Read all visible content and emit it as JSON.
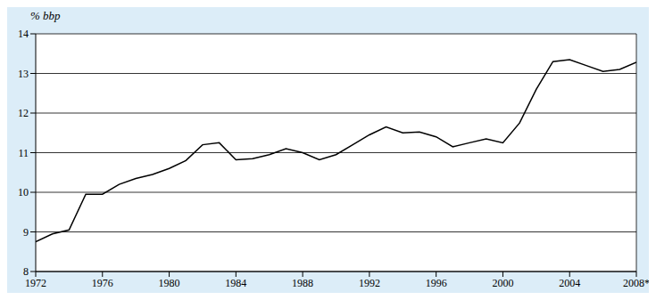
{
  "chart_data": {
    "type": "line",
    "y_label": "% bbp",
    "x": [
      1972,
      1973,
      1974,
      1975,
      1976,
      1977,
      1978,
      1979,
      1980,
      1981,
      1982,
      1983,
      1984,
      1985,
      1986,
      1987,
      1988,
      1989,
      1990,
      1991,
      1992,
      1993,
      1994,
      1995,
      1996,
      1997,
      1998,
      1999,
      2000,
      2001,
      2002,
      2003,
      2004,
      2005,
      2006,
      2007,
      2008
    ],
    "values": [
      8.75,
      8.95,
      9.05,
      9.95,
      9.95,
      10.2,
      10.35,
      10.45,
      10.6,
      10.8,
      11.2,
      11.25,
      10.82,
      10.85,
      10.95,
      11.1,
      11.0,
      10.82,
      10.95,
      11.2,
      11.45,
      11.65,
      11.5,
      11.52,
      11.4,
      11.15,
      11.25,
      11.35,
      11.25,
      11.75,
      12.6,
      13.3,
      13.35,
      13.2,
      13.05,
      13.1,
      13.28
    ],
    "color": "#000000",
    "xlim": [
      1972,
      2008
    ],
    "xticks": [
      1972,
      1976,
      1980,
      1984,
      1988,
      1992,
      1996,
      2000,
      2004,
      {
        "value": 2008,
        "label": "2008*"
      }
    ],
    "ylim": [
      8,
      14
    ],
    "yticks": [
      8,
      9,
      10,
      11,
      12,
      13,
      14
    ],
    "grid": true
  }
}
